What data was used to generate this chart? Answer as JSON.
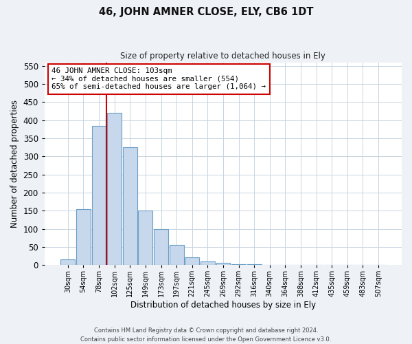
{
  "title": "46, JOHN AMNER CLOSE, ELY, CB6 1DT",
  "subtitle": "Size of property relative to detached houses in Ely",
  "xlabel": "Distribution of detached houses by size in Ely",
  "ylabel": "Number of detached properties",
  "bar_color": "#c8d8ec",
  "bar_edge_color": "#6a9fc8",
  "bin_labels": [
    "30sqm",
    "54sqm",
    "78sqm",
    "102sqm",
    "125sqm",
    "149sqm",
    "173sqm",
    "197sqm",
    "221sqm",
    "245sqm",
    "269sqm",
    "292sqm",
    "316sqm",
    "340sqm",
    "364sqm",
    "388sqm",
    "412sqm",
    "435sqm",
    "459sqm",
    "483sqm",
    "507sqm"
  ],
  "bar_heights": [
    15,
    155,
    385,
    420,
    325,
    150,
    100,
    55,
    22,
    10,
    5,
    3,
    2,
    1,
    1,
    1,
    1,
    0,
    0,
    0,
    1
  ],
  "ylim": [
    0,
    560
  ],
  "yticks": [
    0,
    50,
    100,
    150,
    200,
    250,
    300,
    350,
    400,
    450,
    500,
    550
  ],
  "vline_x_index": 3,
  "vline_color": "#cc0000",
  "annotation_line1": "46 JOHN AMNER CLOSE: 103sqm",
  "annotation_line2": "← 34% of detached houses are smaller (554)",
  "annotation_line3": "65% of semi-detached houses are larger (1,064) →",
  "annotation_box_color": "#ffffff",
  "annotation_box_edge": "#cc0000",
  "footer_line1": "Contains HM Land Registry data © Crown copyright and database right 2024.",
  "footer_line2": "Contains public sector information licensed under the Open Government Licence v3.0.",
  "background_color": "#eef2f7",
  "plot_background": "#ffffff",
  "grid_color": "#c8d4e0"
}
